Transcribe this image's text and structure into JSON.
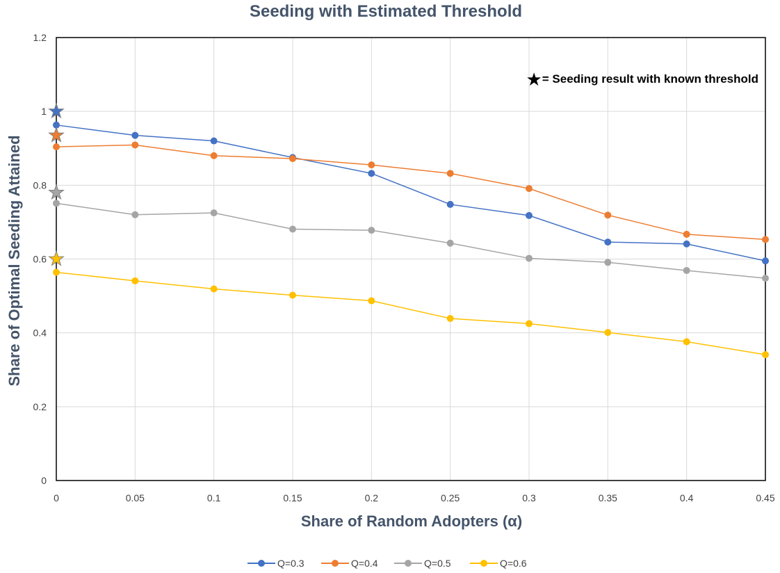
{
  "chart_data": {
    "type": "line",
    "title": "Seeding with Estimated Threshold",
    "xlabel": "Share of Random Adopters (α)",
    "ylabel": "Share of Optimal Seeding Attained",
    "x": [
      0,
      0.05,
      0.1,
      0.15,
      0.2,
      0.25,
      0.3,
      0.35,
      0.4,
      0.45
    ],
    "x_tick_labels": [
      "0",
      "0.05",
      "0.1",
      "0.15",
      "0.2",
      "0.25",
      "0.3",
      "0.35",
      "0.4",
      "0.45"
    ],
    "ylim": [
      0,
      1.2
    ],
    "y_ticks": [
      0,
      0.2,
      0.4,
      0.6,
      0.8,
      1,
      1.2
    ],
    "y_tick_labels": [
      "0",
      "0.2",
      "0.4",
      "0.6",
      "0.8",
      "1",
      "1.2"
    ],
    "grid": true,
    "legend_position": "bottom",
    "series": [
      {
        "name": "Q=0.3",
        "color": "#4472c4",
        "values": [
          0.963,
          0.935,
          0.92,
          0.875,
          0.832,
          0.748,
          0.718,
          0.646,
          0.641,
          0.595
        ]
      },
      {
        "name": "Q=0.4",
        "color": "#ed7d31",
        "values": [
          0.904,
          0.909,
          0.88,
          0.872,
          0.855,
          0.832,
          0.791,
          0.719,
          0.667,
          0.653
        ]
      },
      {
        "name": "Q=0.5",
        "color": "#a5a5a5",
        "values": [
          0.751,
          0.72,
          0.725,
          0.681,
          0.678,
          0.643,
          0.602,
          0.591,
          0.569,
          0.548
        ]
      },
      {
        "name": "Q=0.6",
        "color": "#ffc000",
        "values": [
          0.564,
          0.541,
          0.519,
          0.502,
          0.487,
          0.439,
          0.425,
          0.401,
          0.376,
          0.341
        ]
      }
    ],
    "known_threshold_markers": [
      {
        "series": "Q=0.3",
        "x": 0,
        "y": 1.0,
        "color": "#4472c4"
      },
      {
        "series": "Q=0.4",
        "x": 0,
        "y": 0.935,
        "color": "#ed7d31"
      },
      {
        "series": "Q=0.5",
        "x": 0,
        "y": 0.78,
        "color": "#a5a5a5"
      },
      {
        "series": "Q=0.6",
        "x": 0,
        "y": 0.6,
        "color": "#ffc000"
      }
    ],
    "annotation": {
      "symbol": "★",
      "text": "= Seeding result with known threshold"
    }
  }
}
